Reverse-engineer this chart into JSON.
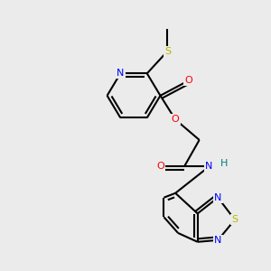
{
  "bg_color": "#ebebeb",
  "atom_colors": {
    "N": "#0000ff",
    "O": "#ff0000",
    "S": "#b8b800",
    "C": "#000000",
    "H": "#008080"
  },
  "bond_color": "#000000",
  "bond_width": 1.5
}
